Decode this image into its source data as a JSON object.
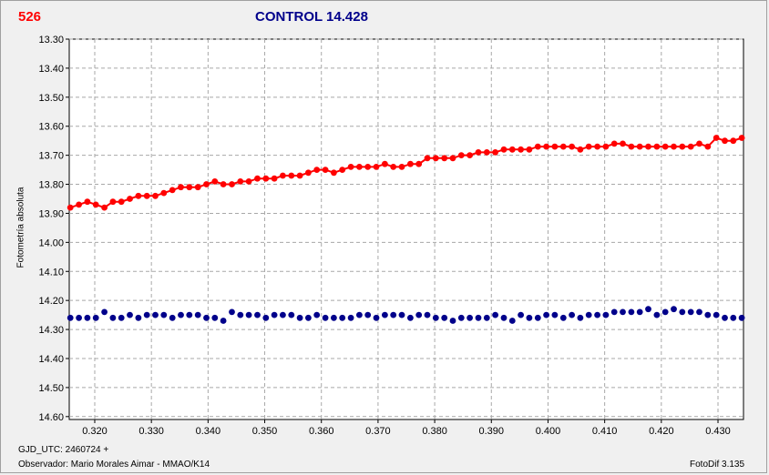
{
  "header": {
    "object_label": "526",
    "control_label": "CONTROL 14.428"
  },
  "footer": {
    "gjd": "GJD_UTC: 2460724 +",
    "observer": "Observador: Mario Morales Aimar - MMAO/K14",
    "software": "FotoDif 3.135"
  },
  "chart_data": {
    "type": "scatter",
    "ylabel": "Fotometría absoluta",
    "xlabel": "",
    "xlim": [
      0.3155,
      0.4345
    ],
    "ylim": [
      13.3,
      14.61
    ],
    "y_inverted": true,
    "grid": true,
    "x_ticks": [
      "0.320",
      "0.330",
      "0.340",
      "0.350",
      "0.360",
      "0.370",
      "0.380",
      "0.390",
      "0.400",
      "0.410",
      "0.420",
      "0.430"
    ],
    "y_ticks": [
      "13.30",
      "13.40",
      "13.50",
      "13.60",
      "13.70",
      "13.80",
      "13.90",
      "14.00",
      "14.10",
      "14.20",
      "14.30",
      "14.40",
      "14.50",
      "14.60"
    ],
    "colors": {
      "object": "#ff0000",
      "control": "#00008b"
    },
    "series": [
      {
        "key": "object",
        "connected": true,
        "x": [
          0.3157,
          0.3172,
          0.3187,
          0.3202,
          0.3217,
          0.3232,
          0.3247,
          0.3262,
          0.3277,
          0.3292,
          0.3307,
          0.3322,
          0.3337,
          0.3352,
          0.3367,
          0.3382,
          0.3397,
          0.3412,
          0.3427,
          0.3442,
          0.3457,
          0.3472,
          0.3487,
          0.3502,
          0.3517,
          0.3532,
          0.3547,
          0.3562,
          0.3577,
          0.3592,
          0.3607,
          0.3622,
          0.3637,
          0.3652,
          0.3667,
          0.3682,
          0.3697,
          0.3712,
          0.3727,
          0.3742,
          0.3757,
          0.3772,
          0.3787,
          0.3802,
          0.3817,
          0.3832,
          0.3847,
          0.3862,
          0.3877,
          0.3892,
          0.3907,
          0.3922,
          0.3937,
          0.3952,
          0.3967,
          0.3982,
          0.3997,
          0.4012,
          0.4027,
          0.4042,
          0.4057,
          0.4072,
          0.4087,
          0.4102,
          0.4117,
          0.4132,
          0.4147,
          0.4162,
          0.4177,
          0.4192,
          0.4207,
          0.4222,
          0.4237,
          0.4252,
          0.4267,
          0.4282,
          0.4297,
          0.4312,
          0.4327,
          0.4342
        ],
        "y": [
          13.88,
          13.87,
          13.86,
          13.87,
          13.88,
          13.86,
          13.86,
          13.85,
          13.84,
          13.84,
          13.84,
          13.83,
          13.82,
          13.81,
          13.81,
          13.81,
          13.8,
          13.79,
          13.8,
          13.8,
          13.79,
          13.79,
          13.78,
          13.78,
          13.78,
          13.77,
          13.77,
          13.77,
          13.76,
          13.75,
          13.75,
          13.76,
          13.75,
          13.74,
          13.74,
          13.74,
          13.74,
          13.73,
          13.74,
          13.74,
          13.73,
          13.73,
          13.71,
          13.71,
          13.71,
          13.71,
          13.7,
          13.7,
          13.69,
          13.69,
          13.69,
          13.68,
          13.68,
          13.68,
          13.68,
          13.67,
          13.67,
          13.67,
          13.67,
          13.67,
          13.68,
          13.67,
          13.67,
          13.67,
          13.66,
          13.66,
          13.67,
          13.67,
          13.67,
          13.67,
          13.67,
          13.67,
          13.67,
          13.67,
          13.66,
          13.67,
          13.64,
          13.65,
          13.65,
          13.64
        ]
      },
      {
        "key": "control",
        "connected": false,
        "x": [
          0.3157,
          0.3172,
          0.3187,
          0.3202,
          0.3217,
          0.3232,
          0.3247,
          0.3262,
          0.3277,
          0.3292,
          0.3307,
          0.3322,
          0.3337,
          0.3352,
          0.3367,
          0.3382,
          0.3397,
          0.3412,
          0.3427,
          0.3442,
          0.3457,
          0.3472,
          0.3487,
          0.3502,
          0.3517,
          0.3532,
          0.3547,
          0.3562,
          0.3577,
          0.3592,
          0.3607,
          0.3622,
          0.3637,
          0.3652,
          0.3667,
          0.3682,
          0.3697,
          0.3712,
          0.3727,
          0.3742,
          0.3757,
          0.3772,
          0.3787,
          0.3802,
          0.3817,
          0.3832,
          0.3847,
          0.3862,
          0.3877,
          0.3892,
          0.3907,
          0.3922,
          0.3937,
          0.3952,
          0.3967,
          0.3982,
          0.3997,
          0.4012,
          0.4027,
          0.4042,
          0.4057,
          0.4072,
          0.4087,
          0.4102,
          0.4117,
          0.4132,
          0.4147,
          0.4162,
          0.4177,
          0.4192,
          0.4207,
          0.4222,
          0.4237,
          0.4252,
          0.4267,
          0.4282,
          0.4297,
          0.4312,
          0.4327,
          0.4342
        ],
        "y": [
          14.26,
          14.26,
          14.26,
          14.26,
          14.24,
          14.26,
          14.26,
          14.25,
          14.26,
          14.25,
          14.25,
          14.25,
          14.26,
          14.25,
          14.25,
          14.25,
          14.26,
          14.26,
          14.27,
          14.24,
          14.25,
          14.25,
          14.25,
          14.26,
          14.25,
          14.25,
          14.25,
          14.26,
          14.26,
          14.25,
          14.26,
          14.26,
          14.26,
          14.26,
          14.25,
          14.25,
          14.26,
          14.25,
          14.25,
          14.25,
          14.26,
          14.25,
          14.25,
          14.26,
          14.26,
          14.27,
          14.26,
          14.26,
          14.26,
          14.26,
          14.25,
          14.26,
          14.27,
          14.25,
          14.26,
          14.26,
          14.25,
          14.25,
          14.26,
          14.25,
          14.26,
          14.25,
          14.25,
          14.25,
          14.24,
          14.24,
          14.24,
          14.24,
          14.23,
          14.25,
          14.24,
          14.23,
          14.24,
          14.24,
          14.24,
          14.25,
          14.25,
          14.26,
          14.26,
          14.26
        ]
      }
    ]
  }
}
